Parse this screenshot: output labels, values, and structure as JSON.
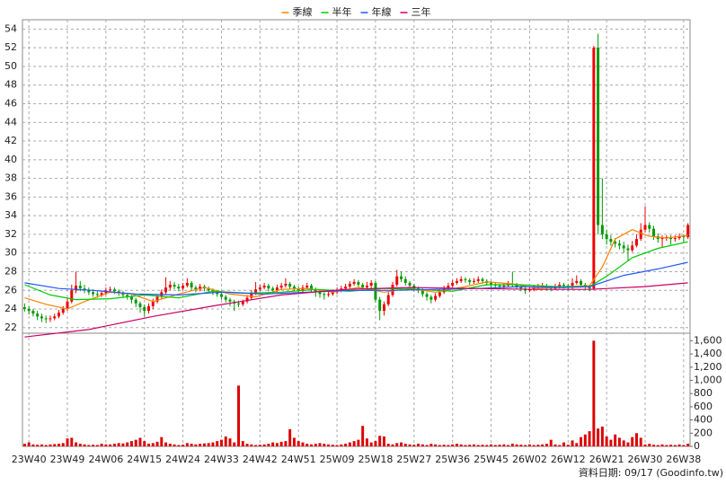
{
  "chart_data": {
    "type": "candlestick",
    "legend": "top",
    "grid": true,
    "footnote": "資料日期: 09/17  (Goodinfo.tw)",
    "xlim": [
      -0.5,
      155.5
    ],
    "xticks": [
      {
        "value": 1,
        "label": "23W40"
      },
      {
        "value": 10,
        "label": "23W49"
      },
      {
        "value": 19,
        "label": "24W06"
      },
      {
        "value": 28,
        "label": "24W15"
      },
      {
        "value": 37,
        "label": "24W24"
      },
      {
        "value": 46,
        "label": "24W33"
      },
      {
        "value": 55,
        "label": "24W42"
      },
      {
        "value": 64,
        "label": "24W51"
      },
      {
        "value": 73,
        "label": "25W09"
      },
      {
        "value": 82,
        "label": "25W18"
      },
      {
        "value": 91,
        "label": "25W27"
      },
      {
        "value": 100,
        "label": "25W36"
      },
      {
        "value": 109,
        "label": "25W45"
      },
      {
        "value": 118,
        "label": "26W02"
      },
      {
        "value": 127,
        "label": "26W12"
      },
      {
        "value": 136,
        "label": "26W21"
      },
      {
        "value": 145,
        "label": "26W30"
      },
      {
        "value": 154,
        "label": "26W38"
      }
    ],
    "ylim": [
      21.5,
      55
    ],
    "yticks": [
      22,
      24,
      26,
      28,
      30,
      32,
      34,
      36,
      38,
      40,
      42,
      44,
      46,
      48,
      50,
      52,
      54
    ],
    "up_color": "#ee0000",
    "down_color": "#009900",
    "ohlc": [
      [
        24.2,
        24.6,
        23.7,
        24
      ],
      [
        24,
        24.3,
        23.4,
        23.8
      ],
      [
        23.8,
        24,
        23.2,
        23.5
      ],
      [
        23.5,
        23.8,
        22.8,
        23.2
      ],
      [
        23.2,
        23.5,
        22.6,
        23
      ],
      [
        23,
        23.3,
        22.5,
        22.9
      ],
      [
        22.9,
        23.3,
        22.6,
        23
      ],
      [
        23,
        23.5,
        22.8,
        23.2
      ],
      [
        23.2,
        23.9,
        23,
        23.6
      ],
      [
        23.6,
        24.3,
        23.4,
        24
      ],
      [
        24,
        25.2,
        23.8,
        24.8
      ],
      [
        24.8,
        26.6,
        24.6,
        26
      ],
      [
        26,
        28,
        25.7,
        26.5
      ],
      [
        26.5,
        27,
        25.9,
        26.2
      ],
      [
        26.2,
        26.6,
        25.7,
        26
      ],
      [
        26,
        26.3,
        25.5,
        25.8
      ],
      [
        25.8,
        26.1,
        25.3,
        25.6
      ],
      [
        25.6,
        25.9,
        25.2,
        25.5
      ],
      [
        25.5,
        26,
        25.3,
        25.7
      ],
      [
        25.7,
        26.3,
        25.5,
        26
      ],
      [
        26,
        26.4,
        25.8,
        26.1
      ],
      [
        26.1,
        26.3,
        25.6,
        25.9
      ],
      [
        25.9,
        26.1,
        25.4,
        25.7
      ],
      [
        25.7,
        25.9,
        25.2,
        25.5
      ],
      [
        25.5,
        25.7,
        25,
        25.3
      ],
      [
        25.3,
        25.5,
        24.6,
        25
      ],
      [
        25,
        25.2,
        24.2,
        24.6
      ],
      [
        24.6,
        24.8,
        23.6,
        24.2
      ],
      [
        24.2,
        24.5,
        23.2,
        23.8
      ],
      [
        23.8,
        24.6,
        23.5,
        24.3
      ],
      [
        24.3,
        25.1,
        24,
        24.8
      ],
      [
        24.8,
        25.6,
        24.6,
        25.3
      ],
      [
        25.3,
        26.1,
        25.1,
        25.8
      ],
      [
        25.8,
        27.4,
        25.6,
        26.3
      ],
      [
        26.3,
        27,
        26,
        26.6
      ],
      [
        26.6,
        26.9,
        26.1,
        26.4
      ],
      [
        26.4,
        26.7,
        25.9,
        26.2
      ],
      [
        26.2,
        26.8,
        26,
        26.5
      ],
      [
        26.5,
        27.3,
        26.3,
        26.8
      ],
      [
        26.8,
        27,
        26,
        26.3
      ],
      [
        26.3,
        26.5,
        25.8,
        26.1
      ],
      [
        26.1,
        26.7,
        25.9,
        26.4
      ],
      [
        26.4,
        26.6,
        25.9,
        26.2
      ],
      [
        26.2,
        26.4,
        25.7,
        26
      ],
      [
        26,
        26.2,
        25.5,
        25.8
      ],
      [
        25.8,
        26,
        25.3,
        25.6
      ],
      [
        25.6,
        25.8,
        25,
        25.3
      ],
      [
        25.3,
        25.5,
        24.7,
        25
      ],
      [
        25,
        25.2,
        24.3,
        24.8
      ],
      [
        24.8,
        25,
        23.8,
        24.6
      ],
      [
        24.6,
        24.9,
        24.2,
        24.5
      ],
      [
        24.5,
        25,
        24.3,
        24.8
      ],
      [
        24.8,
        25.5,
        24.6,
        25.2
      ],
      [
        25.2,
        26,
        25,
        25.7
      ],
      [
        25.7,
        26.9,
        25.5,
        26.1
      ],
      [
        26.1,
        26.6,
        25.9,
        26.3
      ],
      [
        26.3,
        26.8,
        26.1,
        26.5
      ],
      [
        26.5,
        26.7,
        25.9,
        26.2
      ],
      [
        26.2,
        26.4,
        25.7,
        26
      ],
      [
        26,
        26.6,
        25.8,
        26.3
      ],
      [
        26.3,
        26.8,
        26.1,
        26.5
      ],
      [
        26.5,
        27.3,
        26.3,
        26.7
      ],
      [
        26.7,
        26.9,
        26.1,
        26.4
      ],
      [
        26.4,
        26.6,
        25.9,
        26.2
      ],
      [
        26.2,
        26.4,
        25.7,
        26
      ],
      [
        26,
        26.6,
        25.8,
        26.3
      ],
      [
        26.3,
        26.8,
        26.1,
        26.5
      ],
      [
        26.5,
        26.7,
        25.8,
        26.1
      ],
      [
        26.1,
        26.3,
        25.3,
        25.8
      ],
      [
        25.8,
        26,
        25.2,
        25.6
      ],
      [
        25.6,
        25.8,
        25,
        25.5
      ],
      [
        25.5,
        25.9,
        25.3,
        25.6
      ],
      [
        25.6,
        26.1,
        25.4,
        25.8
      ],
      [
        25.8,
        26.3,
        25.6,
        26
      ],
      [
        26,
        26.5,
        25.8,
        26.2
      ],
      [
        26.2,
        26.7,
        26,
        26.4
      ],
      [
        26.4,
        27,
        26.2,
        26.7
      ],
      [
        26.7,
        27.2,
        26.5,
        26.9
      ],
      [
        26.9,
        27.1,
        26.3,
        26.6
      ],
      [
        26.6,
        26.8,
        26,
        26.3
      ],
      [
        26.3,
        26.9,
        26.1,
        26.5
      ],
      [
        26.5,
        27.1,
        26.2,
        26.8
      ],
      [
        26.8,
        27,
        24.7,
        25
      ],
      [
        25,
        25.3,
        22.8,
        23.8
      ],
      [
        23.8,
        24.8,
        23.3,
        24.5
      ],
      [
        24.5,
        25.8,
        24.3,
        25.5
      ],
      [
        25.5,
        26.9,
        25.3,
        26.6
      ],
      [
        26.6,
        28.2,
        26.4,
        27.5
      ],
      [
        27.5,
        28,
        26.9,
        27.2
      ],
      [
        27.2,
        27.5,
        26.5,
        26.8
      ],
      [
        26.8,
        27,
        26.2,
        26.5
      ],
      [
        26.5,
        26.7,
        25.9,
        26.2
      ],
      [
        26.2,
        26.4,
        25.7,
        26
      ],
      [
        26,
        26.2,
        25.3,
        25.6
      ],
      [
        25.6,
        25.8,
        24.9,
        25.3
      ],
      [
        25.3,
        25.5,
        24.6,
        25
      ],
      [
        25,
        25.7,
        24.8,
        25.4
      ],
      [
        25.4,
        26.1,
        25.2,
        25.8
      ],
      [
        25.8,
        26.5,
        25.6,
        26.2
      ],
      [
        26.2,
        26.8,
        26,
        26.5
      ],
      [
        26.5,
        27.1,
        26.3,
        26.8
      ],
      [
        26.8,
        27.3,
        26.6,
        27
      ],
      [
        27,
        27.5,
        26.8,
        27.2
      ],
      [
        27.2,
        27.4,
        26.8,
        27.1
      ],
      [
        27.1,
        27.3,
        26.6,
        26.9
      ],
      [
        26.9,
        27.3,
        26.7,
        27
      ],
      [
        27,
        27.5,
        26.8,
        27.2
      ],
      [
        27.2,
        27.4,
        26.7,
        27
      ],
      [
        27,
        27.2,
        26.5,
        26.8
      ],
      [
        26.8,
        27,
        26.3,
        26.6
      ],
      [
        26.6,
        26.8,
        26.2,
        26.5
      ],
      [
        26.5,
        26.7,
        26.1,
        26.4
      ],
      [
        26.4,
        26.8,
        26.2,
        26.5
      ],
      [
        26.5,
        27,
        26.3,
        26.7
      ],
      [
        26.7,
        28,
        26.4,
        26.6
      ],
      [
        26.6,
        26.8,
        26.1,
        26.4
      ],
      [
        26.4,
        26.6,
        25.9,
        26.2
      ],
      [
        26.2,
        26.4,
        25.6,
        26
      ],
      [
        26,
        26.4,
        25.8,
        26.1
      ],
      [
        26.1,
        26.6,
        25.9,
        26.3
      ],
      [
        26.3,
        26.7,
        26.1,
        26.4
      ],
      [
        26.4,
        26.8,
        26.2,
        26.5
      ],
      [
        26.5,
        26.7,
        26,
        26.3
      ],
      [
        26.3,
        26.5,
        25.9,
        26.2
      ],
      [
        26.2,
        26.7,
        26,
        26.4
      ],
      [
        26.4,
        26.9,
        26.2,
        26.6
      ],
      [
        26.6,
        26.8,
        26.2,
        26.5
      ],
      [
        26.5,
        26.7,
        26,
        26.3
      ],
      [
        26.3,
        27.3,
        26.1,
        26.8
      ],
      [
        26.8,
        27.6,
        26.6,
        27
      ],
      [
        27,
        27.2,
        26.3,
        26.6
      ],
      [
        26.6,
        26.8,
        26.1,
        26.4
      ],
      [
        26.4,
        26.6,
        25.9,
        26.2
      ],
      [
        26.2,
        52.2,
        26,
        52
      ],
      [
        52,
        53.5,
        32,
        33
      ],
      [
        33,
        38,
        31.5,
        32
      ],
      [
        32,
        32.5,
        30.9,
        31.5
      ],
      [
        31.5,
        31.9,
        30.8,
        31.2
      ],
      [
        31.2,
        31.6,
        30.6,
        31
      ],
      [
        31,
        31.4,
        30.4,
        30.8
      ],
      [
        30.8,
        31.2,
        30,
        30.5
      ],
      [
        30.5,
        30.9,
        29.1,
        30.3
      ],
      [
        30.3,
        31.3,
        30.1,
        30.8
      ],
      [
        30.8,
        32,
        30.6,
        31.5
      ],
      [
        31.5,
        33.2,
        31.3,
        32.5
      ],
      [
        32.5,
        35,
        32.2,
        33
      ],
      [
        33,
        33.3,
        32.2,
        32.6
      ],
      [
        32.6,
        32.9,
        31.4,
        31.8
      ],
      [
        31.8,
        32.1,
        31.1,
        31.5
      ],
      [
        31.5,
        31.9,
        30.6,
        31.6
      ],
      [
        31.6,
        31.9,
        31.3,
        31.7
      ],
      [
        31.7,
        31.9,
        30.9,
        31.5
      ],
      [
        31.5,
        31.9,
        31.2,
        31.6
      ],
      [
        31.6,
        32.1,
        31.4,
        31.8
      ],
      [
        31.8,
        32,
        31.2,
        31.7
      ],
      [
        31.7,
        33.2,
        31.5,
        33
      ]
    ],
    "series": [
      {
        "name": "季線",
        "color": "#ff8000",
        "x": [
          0,
          5,
          10,
          14,
          20,
          25,
          30,
          36,
          42,
          48,
          54,
          60,
          66,
          72,
          78,
          84,
          90,
          96,
          102,
          108,
          114,
          120,
          126,
          132,
          135,
          138,
          142,
          146,
          150,
          155
        ],
        "values": [
          25.2,
          24.5,
          24,
          24.8,
          25.8,
          25.6,
          24.8,
          25.6,
          26.3,
          25.6,
          25.3,
          26.1,
          26.2,
          25.8,
          26.3,
          25.8,
          26.2,
          25.8,
          26.3,
          26.9,
          26.7,
          26.2,
          26.4,
          26.5,
          28.5,
          31.5,
          32.5,
          31.8,
          31.6,
          31.9
        ]
      },
      {
        "name": "半年",
        "color": "#00cc00",
        "x": [
          0,
          6,
          12,
          20,
          28,
          36,
          44,
          52,
          60,
          68,
          76,
          84,
          92,
          100,
          108,
          116,
          124,
          132,
          136,
          142,
          148,
          155
        ],
        "values": [
          26.6,
          25.5,
          25,
          25.1,
          25.5,
          25.2,
          25.9,
          25.7,
          25.8,
          26.1,
          25.9,
          26.2,
          26.1,
          25.9,
          26.6,
          26.6,
          26.4,
          26.4,
          27.5,
          29.5,
          30.5,
          31.2
        ]
      },
      {
        "name": "年線",
        "color": "#2255ff",
        "x": [
          0,
          8,
          16,
          26,
          36,
          46,
          56,
          66,
          76,
          86,
          96,
          106,
          116,
          126,
          132,
          140,
          148,
          155
        ],
        "values": [
          26.8,
          26.2,
          26,
          25.6,
          25.5,
          25.8,
          25.6,
          25.8,
          26,
          26,
          26.1,
          26.2,
          26.4,
          26.3,
          26.4,
          27.6,
          28.3,
          29
        ]
      },
      {
        "name": "三年",
        "color": "#cc0066",
        "x": [
          0,
          15,
          30,
          45,
          60,
          75,
          90,
          105,
          120,
          132,
          145,
          155
        ],
        "values": [
          21,
          21.8,
          23.2,
          24.4,
          25.5,
          26.1,
          26.3,
          26.2,
          26.1,
          26.1,
          26.4,
          26.8
        ]
      }
    ],
    "volume": {
      "type": "bar",
      "color": "#dd0000",
      "ylim": [
        0,
        1700
      ],
      "yticks": [
        0,
        200,
        400,
        600,
        800,
        {
          "value": 1000,
          "label": "1,000"
        },
        {
          "value": 1200,
          "label": "1,200"
        },
        {
          "value": 1400,
          "label": "1,400"
        },
        {
          "value": 1600,
          "label": "1,600"
        }
      ],
      "values": [
        40,
        60,
        30,
        25,
        30,
        20,
        30,
        35,
        40,
        50,
        120,
        130,
        60,
        40,
        30,
        20,
        25,
        20,
        40,
        30,
        30,
        40,
        50,
        45,
        60,
        80,
        100,
        130,
        80,
        40,
        50,
        70,
        140,
        60,
        40,
        30,
        20,
        25,
        50,
        40,
        30,
        40,
        45,
        50,
        60,
        80,
        100,
        150,
        120,
        60,
        920,
        80,
        40,
        30,
        20,
        25,
        30,
        40,
        60,
        50,
        70,
        80,
        260,
        130,
        80,
        60,
        40,
        30,
        40,
        50,
        40,
        30,
        25,
        20,
        30,
        40,
        60,
        80,
        100,
        310,
        120,
        60,
        80,
        160,
        150,
        40,
        30,
        50,
        60,
        40,
        30,
        25,
        40,
        30,
        20,
        40,
        30,
        20,
        25,
        20,
        30,
        40,
        30,
        20,
        25,
        30,
        20,
        25,
        20,
        30,
        20,
        25,
        30,
        20,
        40,
        30,
        25,
        20,
        30,
        20,
        25,
        30,
        40,
        100,
        30,
        20,
        60,
        25,
        90,
        50,
        140,
        180,
        230,
        1600,
        270,
        300,
        150,
        100,
        180,
        130,
        90,
        60,
        140,
        200,
        130,
        30,
        40,
        25,
        20,
        30,
        20,
        25,
        20,
        30,
        20,
        40
      ]
    }
  }
}
